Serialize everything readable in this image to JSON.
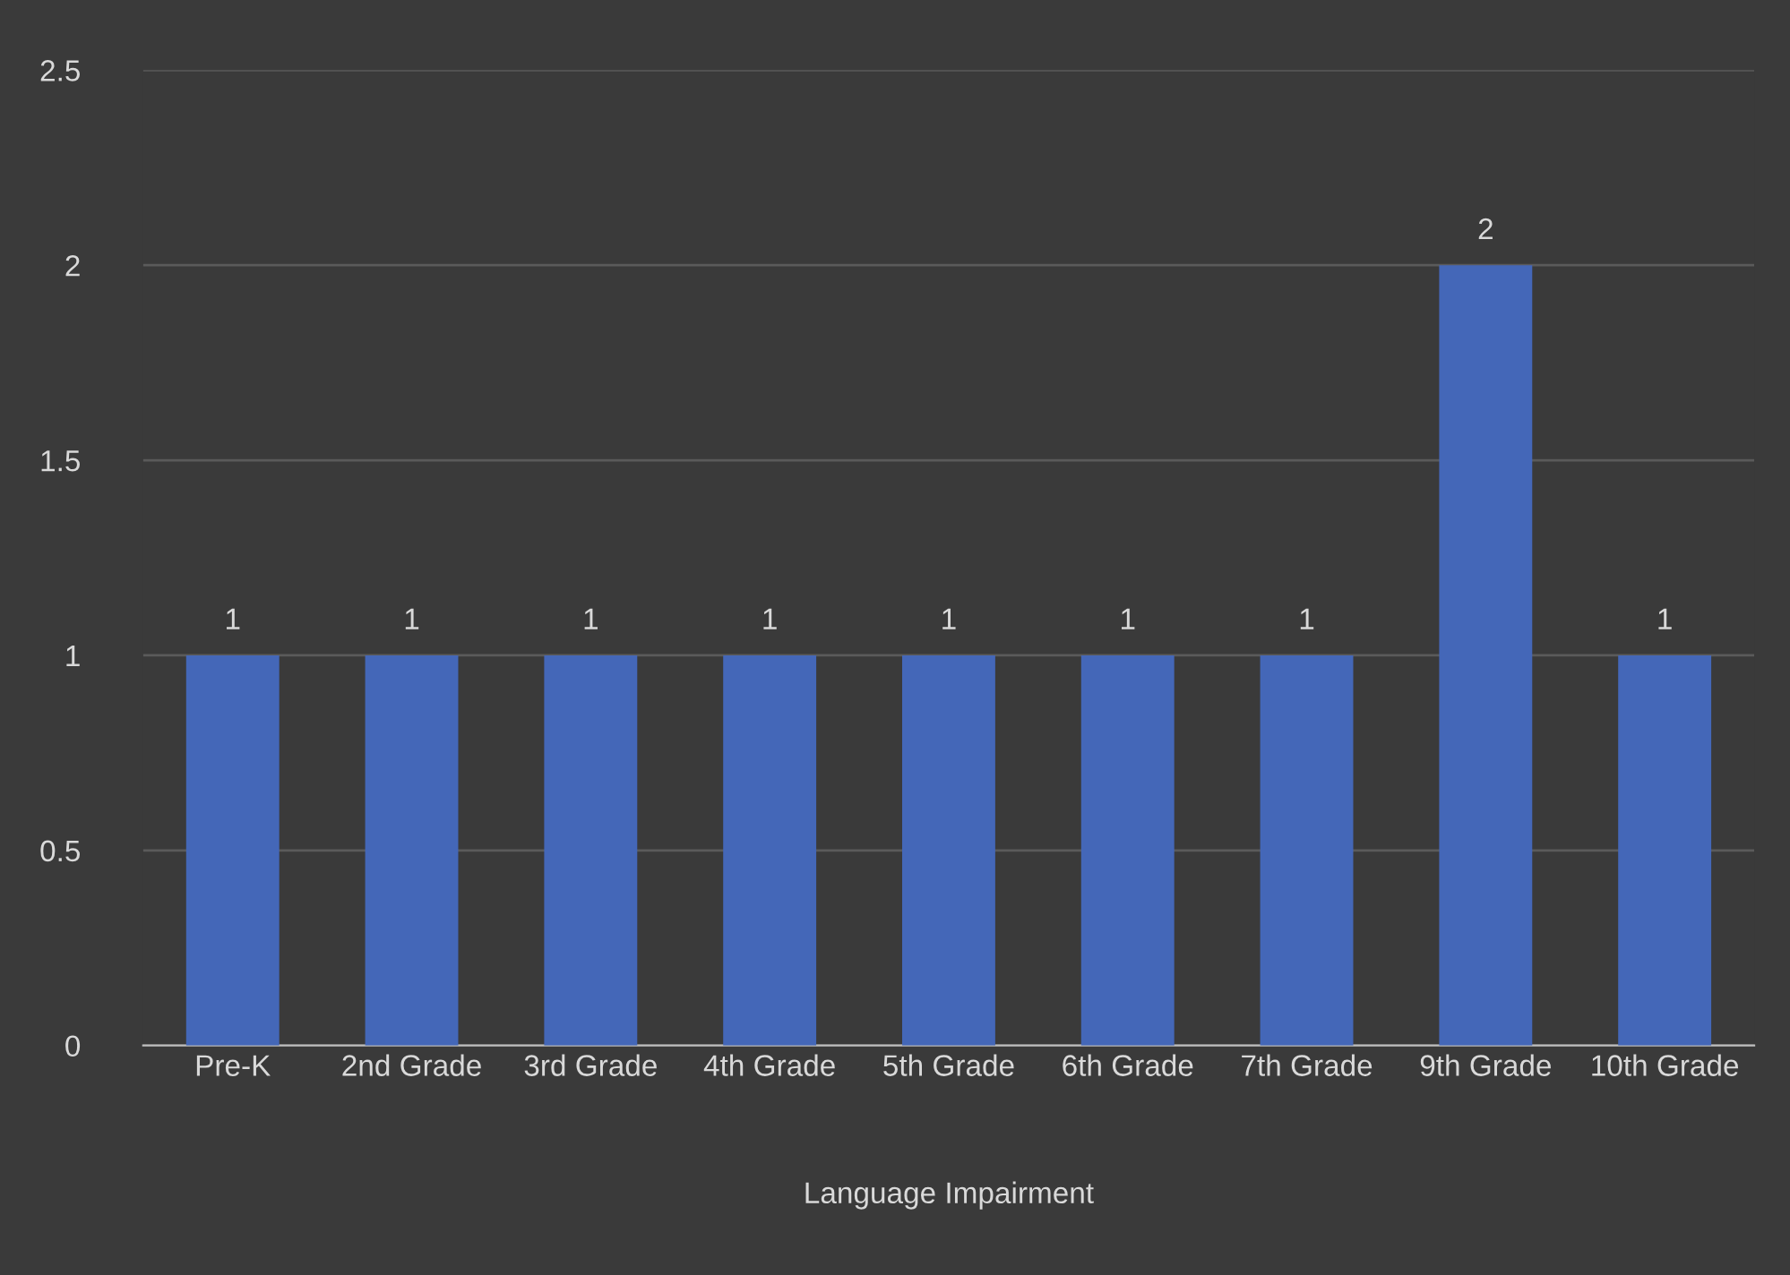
{
  "chart_data": {
    "type": "bar",
    "categories": [
      "Pre-K",
      "2nd Grade",
      "3rd Grade",
      "4th Grade",
      "5th Grade",
      "6th Grade",
      "7th Grade",
      "9th Grade",
      "10th Grade"
    ],
    "values": [
      1,
      1,
      1,
      1,
      1,
      1,
      1,
      2,
      1
    ],
    "color": "#4467b8",
    "xlabel": "Language Impairment",
    "ylim": [
      0,
      2.5
    ],
    "yticks": [
      0,
      0.5,
      1,
      1.5,
      2,
      2.5
    ],
    "grid": "y",
    "data_labels": true
  }
}
